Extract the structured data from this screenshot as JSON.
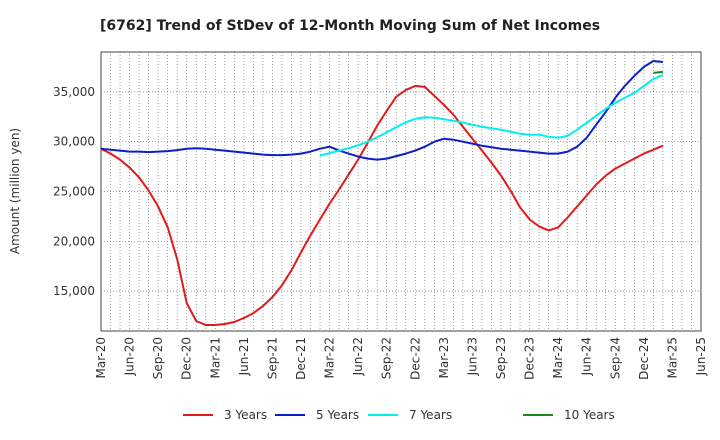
{
  "chart_data": {
    "type": "line",
    "title": "[6762]  Trend of StDev of 12-Month Moving Sum of Net Incomes",
    "ylabel": "Amount (million yen)",
    "xlabel": "",
    "ylim": [
      11000,
      39000
    ],
    "yticks": [
      15000,
      20000,
      25000,
      30000,
      35000
    ],
    "ytick_labels": [
      "15,000",
      "20,000",
      "25,000",
      "30,000",
      "35,000"
    ],
    "xticks": [
      "Mar-20",
      "Jun-20",
      "Sep-20",
      "Dec-20",
      "Mar-21",
      "Jun-21",
      "Sep-21",
      "Dec-21",
      "Mar-22",
      "Jun-22",
      "Sep-22",
      "Dec-22",
      "Mar-23",
      "Jun-23",
      "Sep-23",
      "Dec-23",
      "Mar-24",
      "Jun-24",
      "Sep-24",
      "Dec-24",
      "Mar-25",
      "Jun-25"
    ],
    "x_start": "Mar-20",
    "grid": true,
    "legend_position": "bottom",
    "series": [
      {
        "name": "3 Years",
        "color": "#e31a1c",
        "start_index": 0,
        "values": [
          29300,
          28800,
          28200,
          27400,
          26400,
          25100,
          23500,
          21400,
          18200,
          13800,
          12000,
          11600,
          11600,
          11700,
          11900,
          12300,
          12800,
          13500,
          14400,
          15600,
          17100,
          18900,
          20600,
          22200,
          23800,
          25200,
          26700,
          28200,
          29900,
          31600,
          33100,
          34500,
          35200,
          35600,
          35500,
          34600,
          33700,
          32700,
          31500,
          30300,
          29100,
          27900,
          26600,
          25100,
          23400,
          22200,
          21500,
          21100,
          21400,
          22400,
          23500,
          24600,
          25700,
          26600,
          27300,
          27800,
          28300,
          28800,
          29200,
          29600
        ]
      },
      {
        "name": "5 Years",
        "color": "#0a1fcc",
        "start_index": 0,
        "values": [
          29300,
          29200,
          29100,
          29000,
          29000,
          28950,
          29000,
          29050,
          29150,
          29300,
          29350,
          29300,
          29200,
          29100,
          29000,
          28900,
          28800,
          28700,
          28650,
          28650,
          28700,
          28800,
          29000,
          29300,
          29500,
          29100,
          28800,
          28500,
          28300,
          28200,
          28300,
          28550,
          28800,
          29100,
          29500,
          30000,
          30300,
          30200,
          30000,
          29800,
          29600,
          29450,
          29300,
          29200,
          29100,
          29000,
          28900,
          28800,
          28800,
          29000,
          29500,
          30400,
          31700,
          33000,
          34400,
          35600,
          36600,
          37500,
          38100,
          38000
        ]
      },
      {
        "name": "7 Years",
        "color": "#00f0f0",
        "start_index": 23,
        "values": [
          28600,
          28850,
          29100,
          29350,
          29650,
          30000,
          30450,
          30950,
          31450,
          31950,
          32300,
          32450,
          32400,
          32250,
          32100,
          31900,
          31700,
          31500,
          31350,
          31200,
          31000,
          30800,
          30700,
          30700,
          30500,
          30400,
          30600,
          31200,
          31900,
          32600,
          33300,
          33900,
          34400,
          34900,
          35600,
          36300,
          36700
        ]
      },
      {
        "name": "10 Years",
        "color": "#1a8a1a",
        "start_index": 58,
        "values": [
          36900,
          37000
        ]
      }
    ]
  }
}
